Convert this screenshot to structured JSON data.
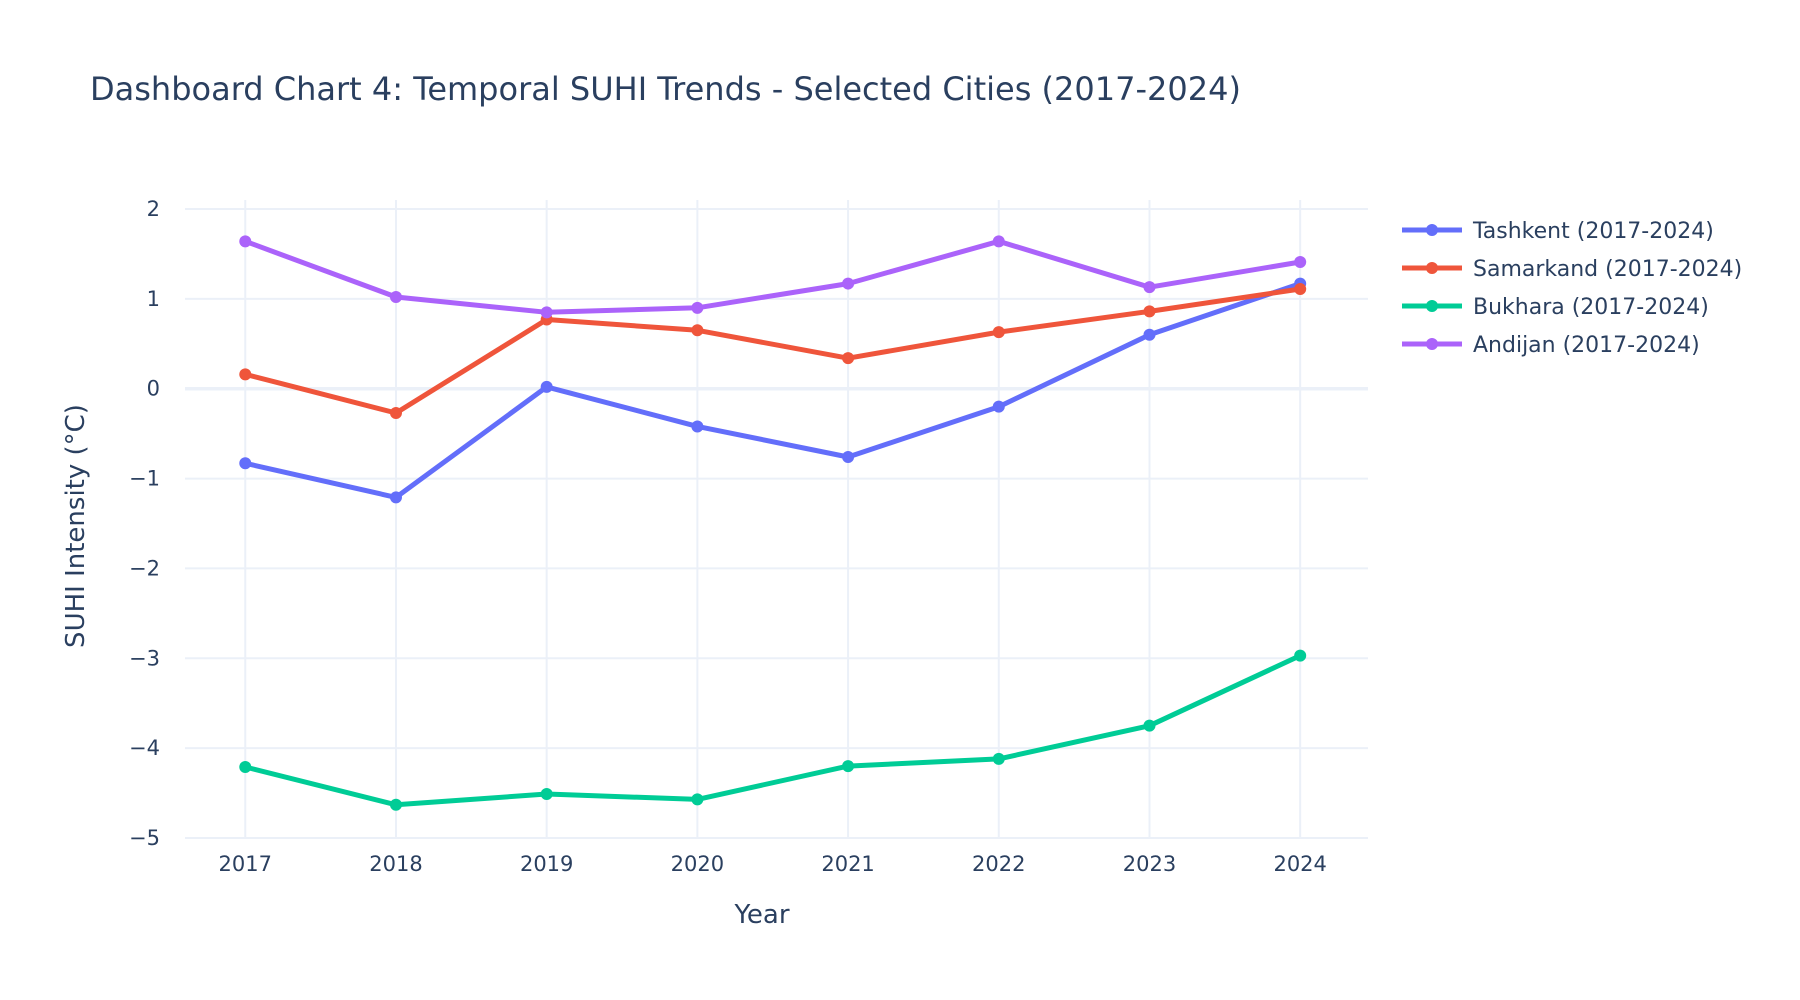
{
  "chart_data": {
    "type": "line",
    "title": "Dashboard Chart 4: Temporal SUHI Trends - Selected Cities (2017-2024)",
    "xlabel": "Year",
    "ylabel": "SUHI Intensity (°C)",
    "x": [
      2017,
      2018,
      2019,
      2020,
      2021,
      2022,
      2023,
      2024
    ],
    "x_tick_labels": [
      "2017",
      "2018",
      "2019",
      "2020",
      "2021",
      "2022",
      "2023",
      "2024"
    ],
    "y_ticks": [
      2,
      1,
      0,
      -1,
      -2,
      -3,
      -4,
      -5
    ],
    "y_tick_labels": [
      "2",
      "1",
      "0",
      "−1",
      "−2",
      "−3",
      "−4",
      "−5"
    ],
    "xlim": [
      2016.6,
      2024.45
    ],
    "ylim": [
      -5,
      2.1
    ],
    "grid": true,
    "legend_position": "right",
    "series": [
      {
        "name": "Tashkent (2017-2024)",
        "color": "#636efa",
        "values": [
          -0.83,
          -1.21,
          0.02,
          -0.42,
          -0.76,
          -0.2,
          0.6,
          1.17
        ]
      },
      {
        "name": "Samarkand (2017-2024)",
        "color": "#ef553b",
        "values": [
          0.16,
          -0.27,
          0.77,
          0.65,
          0.34,
          0.63,
          0.86,
          1.11
        ]
      },
      {
        "name": "Bukhara (2017-2024)",
        "color": "#00cc96",
        "values": [
          -4.21,
          -4.63,
          -4.51,
          -4.57,
          -4.2,
          -4.12,
          -3.75,
          -2.97
        ]
      },
      {
        "name": "Andijan (2017-2024)",
        "color": "#ab63fa",
        "values": [
          1.64,
          1.02,
          0.85,
          0.9,
          1.17,
          1.64,
          1.13,
          1.41
        ]
      }
    ]
  }
}
